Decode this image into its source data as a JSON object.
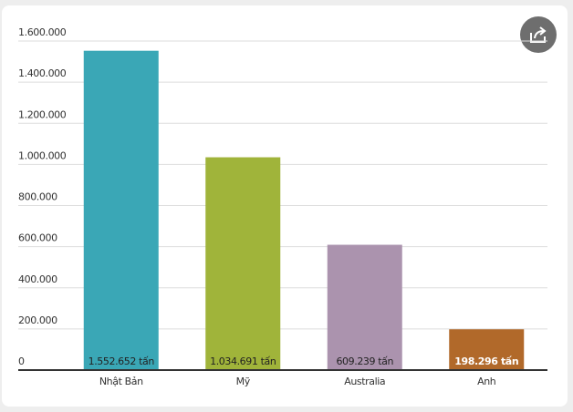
{
  "chart_data": {
    "type": "bar",
    "categories": [
      "Nhật Bản",
      "Mỹ",
      "Australia",
      "Anh"
    ],
    "values": [
      1552652,
      1034691,
      609239,
      198296
    ],
    "value_labels": [
      "1.552.652 tấn",
      "1.034.691 tấn",
      "609.239 tấn",
      "198.296 tấn"
    ],
    "colors": [
      "#3aa7b6",
      "#a0b43a",
      "#ab93ae",
      "#b1692a"
    ],
    "value_label_colors": [
      "#222222",
      "#222222",
      "#222222",
      "#ffffff"
    ],
    "ylim": [
      0,
      1600000
    ],
    "yticks": [
      0,
      {
        "value": 200000,
        "label": "200.000"
      },
      {
        "value": 400000,
        "label": "400.000"
      },
      {
        "value": 600000,
        "label": "600.000"
      },
      {
        "value": 800000,
        "label": "800.000"
      },
      {
        "value": 1000000,
        "label": "1.000.000"
      },
      {
        "value": 1200000,
        "label": "1.200.000"
      },
      {
        "value": 1400000,
        "label": "1.400.000"
      },
      {
        "value": 1600000,
        "label": "1.600.000"
      }
    ],
    "grid": true
  }
}
